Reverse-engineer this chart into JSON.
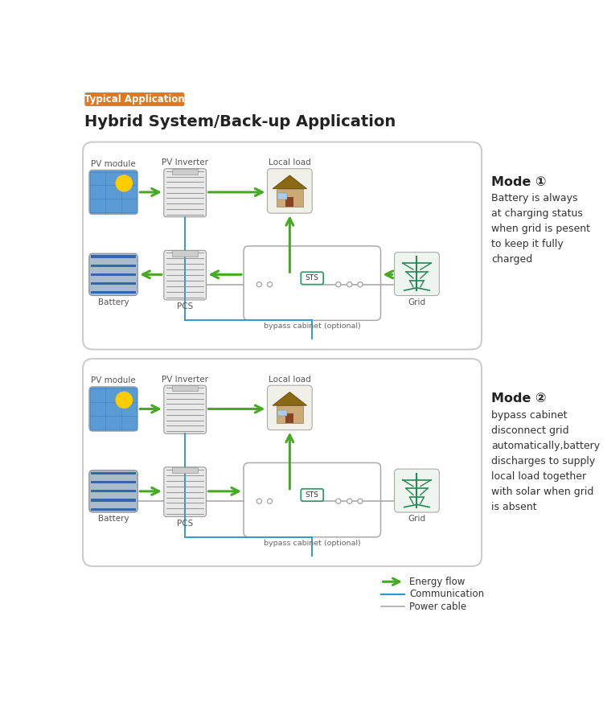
{
  "title": "Hybrid System/Back-up Application",
  "badge_text": "Typical Application",
  "badge_color": "#E07820",
  "badge_text_color": "#ffffff",
  "title_color": "#222222",
  "bg_color": "#ffffff",
  "green_arrow": "#44aa22",
  "blue_line": "#3399cc",
  "gray_line": "#aaaaaa",
  "mode1_title": "Mode ①",
  "mode1_text": "Battery is always\nat charging status\nwhen grid is pesent\nto keep it fully\ncharged",
  "mode2_title": "Mode ②",
  "mode2_text": "bypass cabinet\ndisconnect grid\nautomatically,battery\ndischarges to supply\nlocal load together\nwith solar when grid\nis absent",
  "legend_energy": "Energy flow",
  "legend_comm": "Communication",
  "legend_power": "Power cable"
}
